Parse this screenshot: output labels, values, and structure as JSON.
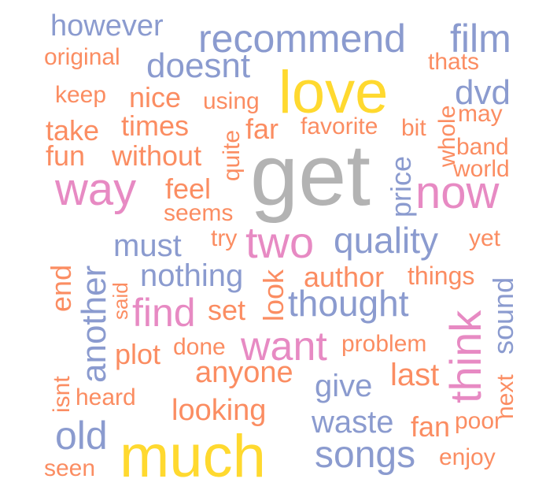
{
  "colors": {
    "background": "#ffffff",
    "blue": "#8B9BCF",
    "orange": "#FB8D62",
    "yellow": "#FFD92F",
    "pink": "#E78AC3",
    "gray": "#B3B3B3"
  },
  "words": [
    {
      "id": "however",
      "text": "however",
      "color": "blue"
    },
    {
      "id": "recommend",
      "text": "recommend",
      "color": "blue"
    },
    {
      "id": "film",
      "text": "film",
      "color": "blue"
    },
    {
      "id": "original",
      "text": "original",
      "color": "orange"
    },
    {
      "id": "doesnt",
      "text": "doesnt",
      "color": "blue"
    },
    {
      "id": "thats",
      "text": "thats",
      "color": "orange"
    },
    {
      "id": "love",
      "text": "love",
      "color": "yellow"
    },
    {
      "id": "dvd",
      "text": "dvd",
      "color": "blue"
    },
    {
      "id": "keep",
      "text": "keep",
      "color": "orange"
    },
    {
      "id": "nice",
      "text": "nice",
      "color": "orange"
    },
    {
      "id": "using",
      "text": "using",
      "color": "orange"
    },
    {
      "id": "whole",
      "text": "whole",
      "color": "orange"
    },
    {
      "id": "may",
      "text": "may",
      "color": "orange"
    },
    {
      "id": "take",
      "text": "take",
      "color": "orange"
    },
    {
      "id": "times",
      "text": "times",
      "color": "orange"
    },
    {
      "id": "far",
      "text": "far",
      "color": "orange"
    },
    {
      "id": "favorite",
      "text": "favorite",
      "color": "orange"
    },
    {
      "id": "bit",
      "text": "bit",
      "color": "orange"
    },
    {
      "id": "band",
      "text": "band",
      "color": "orange"
    },
    {
      "id": "quite",
      "text": "quite",
      "color": "orange"
    },
    {
      "id": "fun",
      "text": "fun",
      "color": "orange"
    },
    {
      "id": "without",
      "text": "without",
      "color": "orange"
    },
    {
      "id": "get",
      "text": "get",
      "color": "gray"
    },
    {
      "id": "price",
      "text": "price",
      "color": "blue"
    },
    {
      "id": "world",
      "text": "world",
      "color": "orange"
    },
    {
      "id": "way",
      "text": "way",
      "color": "pink"
    },
    {
      "id": "feel",
      "text": "feel",
      "color": "orange"
    },
    {
      "id": "now",
      "text": "now",
      "color": "pink"
    },
    {
      "id": "seems",
      "text": "seems",
      "color": "orange"
    },
    {
      "id": "must",
      "text": "must",
      "color": "blue"
    },
    {
      "id": "try",
      "text": "try",
      "color": "orange"
    },
    {
      "id": "two",
      "text": "two",
      "color": "pink"
    },
    {
      "id": "quality",
      "text": "quality",
      "color": "blue"
    },
    {
      "id": "yet",
      "text": "yet",
      "color": "orange"
    },
    {
      "id": "another",
      "text": "another",
      "color": "blue"
    },
    {
      "id": "end",
      "text": "end",
      "color": "orange"
    },
    {
      "id": "said",
      "text": "said",
      "color": "orange"
    },
    {
      "id": "nothing",
      "text": "nothing",
      "color": "blue"
    },
    {
      "id": "look",
      "text": "look",
      "color": "orange"
    },
    {
      "id": "author",
      "text": "author",
      "color": "orange"
    },
    {
      "id": "things",
      "text": "things",
      "color": "orange"
    },
    {
      "id": "sound",
      "text": "sound",
      "color": "blue"
    },
    {
      "id": "find",
      "text": "find",
      "color": "pink"
    },
    {
      "id": "set",
      "text": "set",
      "color": "orange"
    },
    {
      "id": "thought",
      "text": "thought",
      "color": "blue"
    },
    {
      "id": "think",
      "text": "think",
      "color": "pink"
    },
    {
      "id": "plot",
      "text": "plot",
      "color": "orange"
    },
    {
      "id": "done",
      "text": "done",
      "color": "orange"
    },
    {
      "id": "want",
      "text": "want",
      "color": "pink"
    },
    {
      "id": "problem",
      "text": "problem",
      "color": "orange"
    },
    {
      "id": "next",
      "text": "next",
      "color": "orange"
    },
    {
      "id": "isnt",
      "text": "isnt",
      "color": "orange"
    },
    {
      "id": "anyone",
      "text": "anyone",
      "color": "orange"
    },
    {
      "id": "last",
      "text": "last",
      "color": "orange"
    },
    {
      "id": "heard",
      "text": "heard",
      "color": "orange"
    },
    {
      "id": "give",
      "text": "give",
      "color": "blue"
    },
    {
      "id": "looking",
      "text": "looking",
      "color": "orange"
    },
    {
      "id": "old",
      "text": "old",
      "color": "blue"
    },
    {
      "id": "waste",
      "text": "waste",
      "color": "blue"
    },
    {
      "id": "fan",
      "text": "fan",
      "color": "orange"
    },
    {
      "id": "poor",
      "text": "poor",
      "color": "orange"
    },
    {
      "id": "much",
      "text": "much",
      "color": "yellow"
    },
    {
      "id": "songs",
      "text": "songs",
      "color": "blue"
    },
    {
      "id": "enjoy",
      "text": "enjoy",
      "color": "orange"
    },
    {
      "id": "seen",
      "text": "seen",
      "color": "orange"
    }
  ]
}
